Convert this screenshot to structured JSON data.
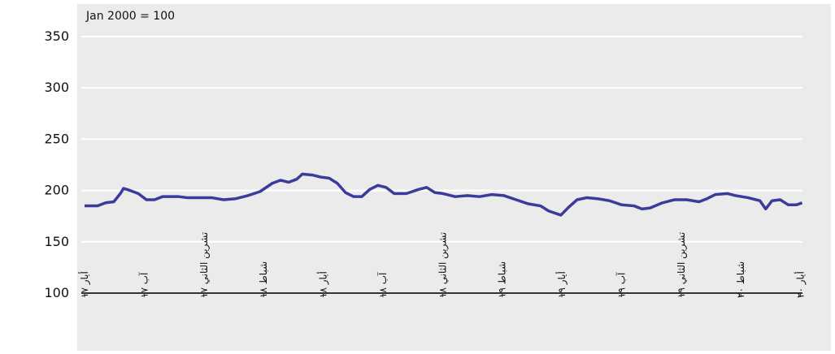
{
  "chart_data": {
    "type": "line",
    "annotation": "Jan 2000 = 100",
    "x": [
      0,
      0.65,
      1.06,
      1.47,
      1.8,
      1.96,
      2.29,
      2.7,
      3.11,
      3.52,
      3.92,
      4.33,
      4.74,
      5.15,
      5.76,
      6.38,
      6.99,
      7.6,
      8.21,
      8.83,
      9.44,
      9.85,
      10.26,
      10.67,
      10.95,
      11.48,
      11.89,
      12.3,
      12.71,
      13.12,
      13.53,
      13.94,
      14.34,
      14.75,
      15.16,
      15.57,
      16.18,
      16.8,
      17.2,
      17.61,
      18.02,
      18.64,
      19.25,
      19.86,
      20.47,
      21.09,
      21.7,
      22.31,
      22.93,
      23.34,
      23.95,
      24.36,
      24.77,
      25.26,
      25.79,
      26.4,
      27.01,
      27.63,
      28.03,
      28.44,
      29.06,
      29.67,
      30.28,
      30.9,
      31.3,
      31.71,
      32.33,
      32.74,
      33.35,
      33.96,
      34.25,
      34.57,
      34.98,
      35.39,
      35.8,
      36.08
    ],
    "series": [
      {
        "color": "#3b3b9b",
        "values": [
          185,
          185,
          188,
          189,
          197,
          202,
          200,
          197,
          191,
          191,
          194,
          194,
          194,
          193,
          193,
          193,
          191,
          192,
          195,
          199,
          207,
          210,
          208,
          211,
          216,
          215,
          213,
          212,
          207,
          198,
          194,
          194,
          201,
          205,
          203,
          197,
          197,
          201,
          203,
          198,
          197,
          194,
          195,
          194,
          196,
          195,
          191,
          187,
          185,
          180,
          176,
          184,
          191,
          193,
          192,
          190,
          186,
          185,
          182,
          183,
          188,
          191,
          191,
          189,
          192,
          196,
          197,
          195,
          193,
          190,
          182,
          190,
          191,
          186,
          186,
          188
        ]
      }
    ],
    "xlim": [
      0,
      36.1
    ],
    "xticks": [
      {
        "value": 0,
        "label": "أيار ١٧"
      },
      {
        "value": 3,
        "label": "آب ١٧"
      },
      {
        "value": 6,
        "label": "تشرين الثاني ١٧"
      },
      {
        "value": 9,
        "label": "شباط ١٨"
      },
      {
        "value": 12,
        "label": "أيار ١٨"
      },
      {
        "value": 15,
        "label": "آب ١٨"
      },
      {
        "value": 18,
        "label": "تشرين الثاني ١٨"
      },
      {
        "value": 21,
        "label": "شباط ١٩"
      },
      {
        "value": 24,
        "label": "أيار ١٩"
      },
      {
        "value": 27,
        "label": "آب ١٩"
      },
      {
        "value": 30,
        "label": "تشرين الثاني ١٩"
      },
      {
        "value": 33,
        "label": "شباط ٢٠"
      },
      {
        "value": 36,
        "label": "أيار ٢٠"
      }
    ],
    "ylim": [
      100,
      350
    ],
    "yticks": [
      100,
      150,
      200,
      250,
      300,
      350
    ],
    "grid": true
  }
}
